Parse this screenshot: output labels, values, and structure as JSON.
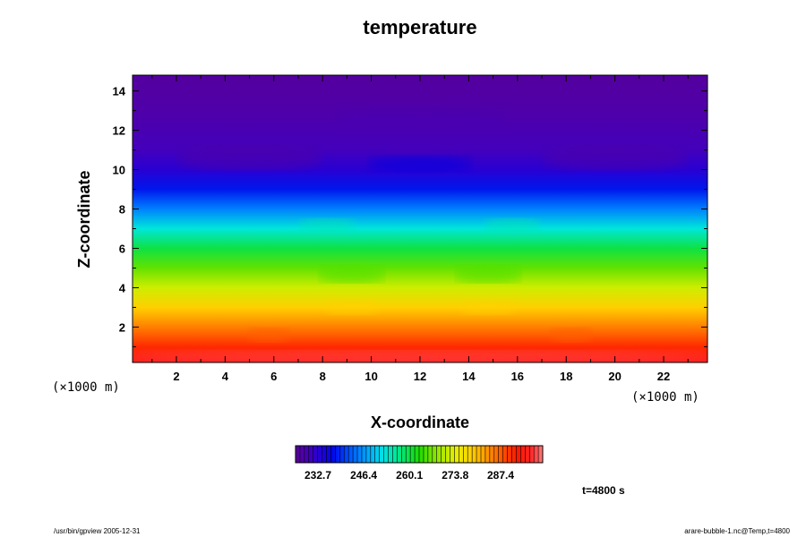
{
  "chart_data": {
    "type": "heatmap",
    "title": "temperature",
    "xlabel": "X-coordinate",
    "ylabel": "Z-coordinate",
    "x_unit": "(×1000 m)",
    "y_unit": "(×1000 m)",
    "xlim": [
      0.2,
      23.8
    ],
    "ylim": [
      0.2,
      14.8
    ],
    "x_ticks": [
      2,
      4,
      6,
      8,
      10,
      12,
      14,
      16,
      18,
      20,
      22
    ],
    "y_ticks": [
      2,
      4,
      6,
      8,
      10,
      12,
      14
    ],
    "z_min": 226,
    "z_max": 300,
    "colorbar_ticks": [
      "232.7",
      "246.4",
      "260.1",
      "273.8",
      "287.4"
    ],
    "colorbar_tick_values": [
      232.7,
      246.4,
      260.1,
      273.8,
      287.4
    ],
    "temperature_profile": [
      {
        "z": 0.2,
        "T": 296
      },
      {
        "z": 1.0,
        "T": 291
      },
      {
        "z": 2.0,
        "T": 285
      },
      {
        "z": 3.0,
        "T": 279
      },
      {
        "z": 4.0,
        "T": 272
      },
      {
        "z": 5.0,
        "T": 266
      },
      {
        "z": 6.0,
        "T": 260
      },
      {
        "z": 7.0,
        "T": 253
      },
      {
        "z": 8.0,
        "T": 245
      },
      {
        "z": 9.0,
        "T": 238
      },
      {
        "z": 10.0,
        "T": 233
      },
      {
        "z": 11.0,
        "T": 230
      },
      {
        "z": 12.0,
        "T": 229
      },
      {
        "z": 13.0,
        "T": 228
      },
      {
        "z": 14.8,
        "T": 227
      }
    ],
    "time_label": "t=4800 s",
    "footer_left": "/usr/bin/gpview 2005-12-31",
    "footer_right": "arare-bubble-1.nc@Temp,t=4800",
    "colormap": [
      "#5a0096",
      "#3c00c8",
      "#0000e6",
      "#0050ff",
      "#00a0ff",
      "#00e6e6",
      "#00e678",
      "#1edc00",
      "#96e600",
      "#e6f000",
      "#ffd200",
      "#ff8c00",
      "#ff3c00",
      "#ff0000",
      "#ff7a7a"
    ]
  }
}
